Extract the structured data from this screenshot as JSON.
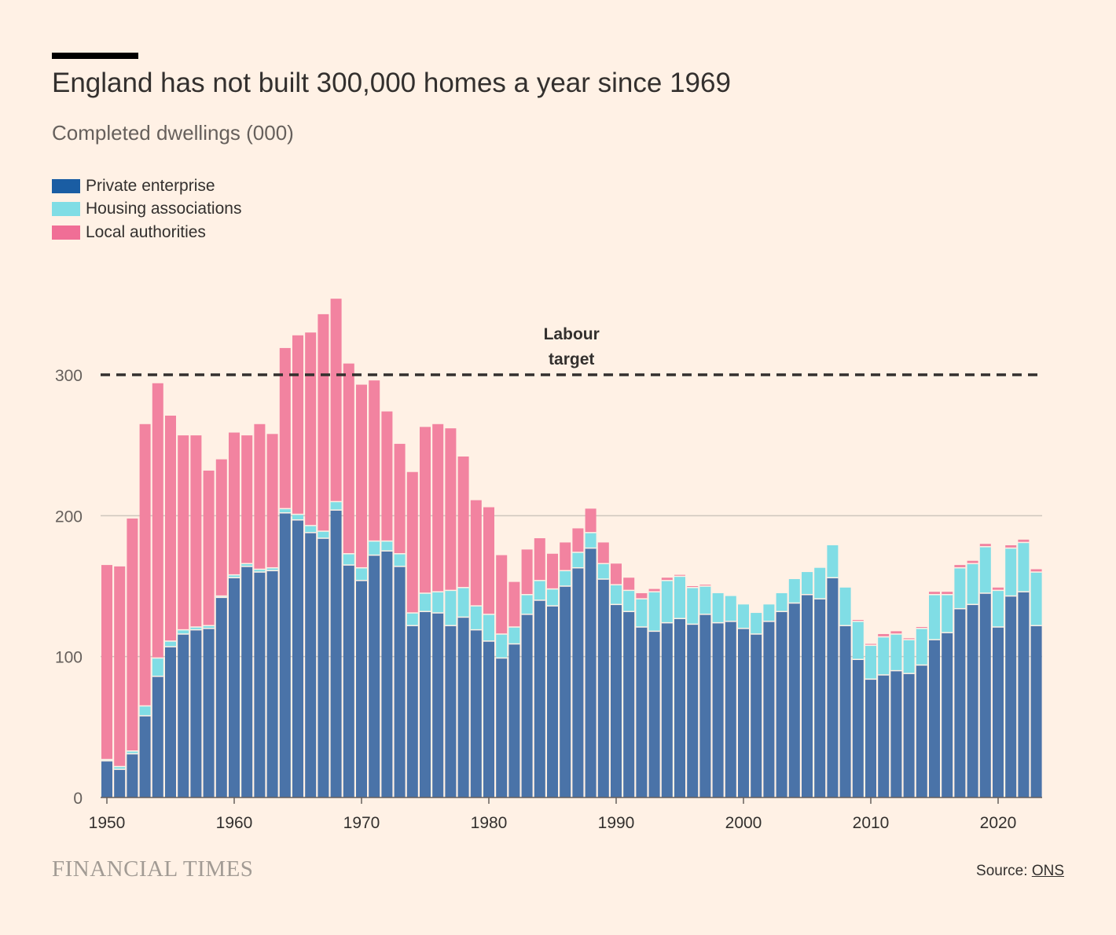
{
  "header": {
    "title": "England has not built 300,000 homes a year since 1969",
    "subtitle": "Completed dwellings (000)"
  },
  "legend": [
    {
      "label": "Private enterprise",
      "color": "#4a73a8"
    },
    {
      "label": "Housing associations",
      "color": "#80dde5"
    },
    {
      "label": "Local authorities",
      "color": "#f283a0"
    }
  ],
  "footer": {
    "brand": "FINANCIAL TIMES",
    "source_prefix": "Source: ",
    "source_link": "ONS"
  },
  "chart_data": {
    "type": "bar",
    "stacked": true,
    "title": "England has not built 300,000 homes a year since 1969",
    "subtitle": "Completed dwellings (000)",
    "xlabel": "",
    "ylabel": "",
    "ylim": [
      0,
      350
    ],
    "yticks": [
      0,
      100,
      200,
      300
    ],
    "xticks": [
      1950,
      1960,
      1970,
      1980,
      1990,
      2000,
      2010,
      2020
    ],
    "grid": true,
    "categories": [
      1950,
      1951,
      1952,
      1953,
      1954,
      1955,
      1956,
      1957,
      1958,
      1959,
      1960,
      1961,
      1962,
      1963,
      1964,
      1965,
      1966,
      1967,
      1968,
      1969,
      1970,
      1971,
      1972,
      1973,
      1974,
      1975,
      1976,
      1977,
      1978,
      1979,
      1980,
      1981,
      1982,
      1983,
      1984,
      1985,
      1986,
      1987,
      1988,
      1989,
      1990,
      1991,
      1992,
      1993,
      1994,
      1995,
      1996,
      1997,
      1998,
      1999,
      2000,
      2001,
      2002,
      2003,
      2004,
      2005,
      2006,
      2007,
      2008,
      2009,
      2010,
      2011,
      2012,
      2013,
      2014,
      2015,
      2016,
      2017,
      2018,
      2019,
      2020,
      2021,
      2022,
      2023
    ],
    "series": [
      {
        "name": "Private enterprise",
        "color": "#4a73a8",
        "values": [
          26,
          20,
          31,
          58,
          86,
          107,
          116,
          119,
          120,
          142,
          156,
          164,
          160,
          161,
          202,
          197,
          188,
          184,
          204,
          165,
          154,
          172,
          175,
          164,
          122,
          132,
          131,
          122,
          128,
          119,
          111,
          99,
          109,
          130,
          140,
          136,
          150,
          163,
          177,
          155,
          137,
          132,
          121,
          118,
          124,
          127,
          123,
          130,
          124,
          125,
          120,
          116,
          125,
          132,
          138,
          144,
          141,
          156,
          122,
          98,
          84,
          87,
          90,
          88,
          94,
          112,
          117,
          134,
          137,
          145,
          121,
          143,
          146,
          122
        ],
        "color_key": "blue"
      },
      {
        "name": "Housing associations",
        "color": "#80dde5",
        "values": [
          1,
          2,
          2,
          7,
          13,
          4,
          3,
          2,
          2,
          1,
          2,
          2,
          2,
          2,
          3,
          4,
          5,
          5,
          6,
          8,
          9,
          10,
          7,
          9,
          9,
          13,
          15,
          25,
          21,
          17,
          19,
          17,
          12,
          14,
          14,
          12,
          11,
          11,
          11,
          11,
          14,
          15,
          20,
          28,
          30,
          30,
          26,
          20,
          21,
          18,
          17,
          15,
          12,
          13,
          17,
          16,
          22,
          23,
          27,
          27,
          24,
          27,
          26,
          24,
          26,
          32,
          27,
          29,
          29,
          33,
          26,
          34,
          35,
          38
        ]
      },
      {
        "name": "Local authorities",
        "color": "#f283a0",
        "values": [
          138,
          142,
          165,
          200,
          195,
          160,
          138,
          136,
          110,
          97,
          101,
          91,
          103,
          95,
          114,
          127,
          137,
          154,
          144,
          135,
          130,
          114,
          92,
          78,
          100,
          118,
          119,
          115,
          93,
          75,
          76,
          56,
          32,
          32,
          30,
          25,
          20,
          17,
          17,
          15,
          15,
          9,
          4,
          2,
          2,
          1,
          1,
          1,
          0,
          0,
          0,
          0,
          0,
          0,
          0,
          0,
          0,
          0,
          0,
          1,
          1,
          2,
          2,
          1,
          1,
          2,
          2,
          2,
          2,
          2,
          2,
          2,
          2,
          2
        ]
      }
    ],
    "reference_line": {
      "value": 300,
      "label_line1": "Labour",
      "label_line2": "target",
      "label_year": 1986
    }
  }
}
